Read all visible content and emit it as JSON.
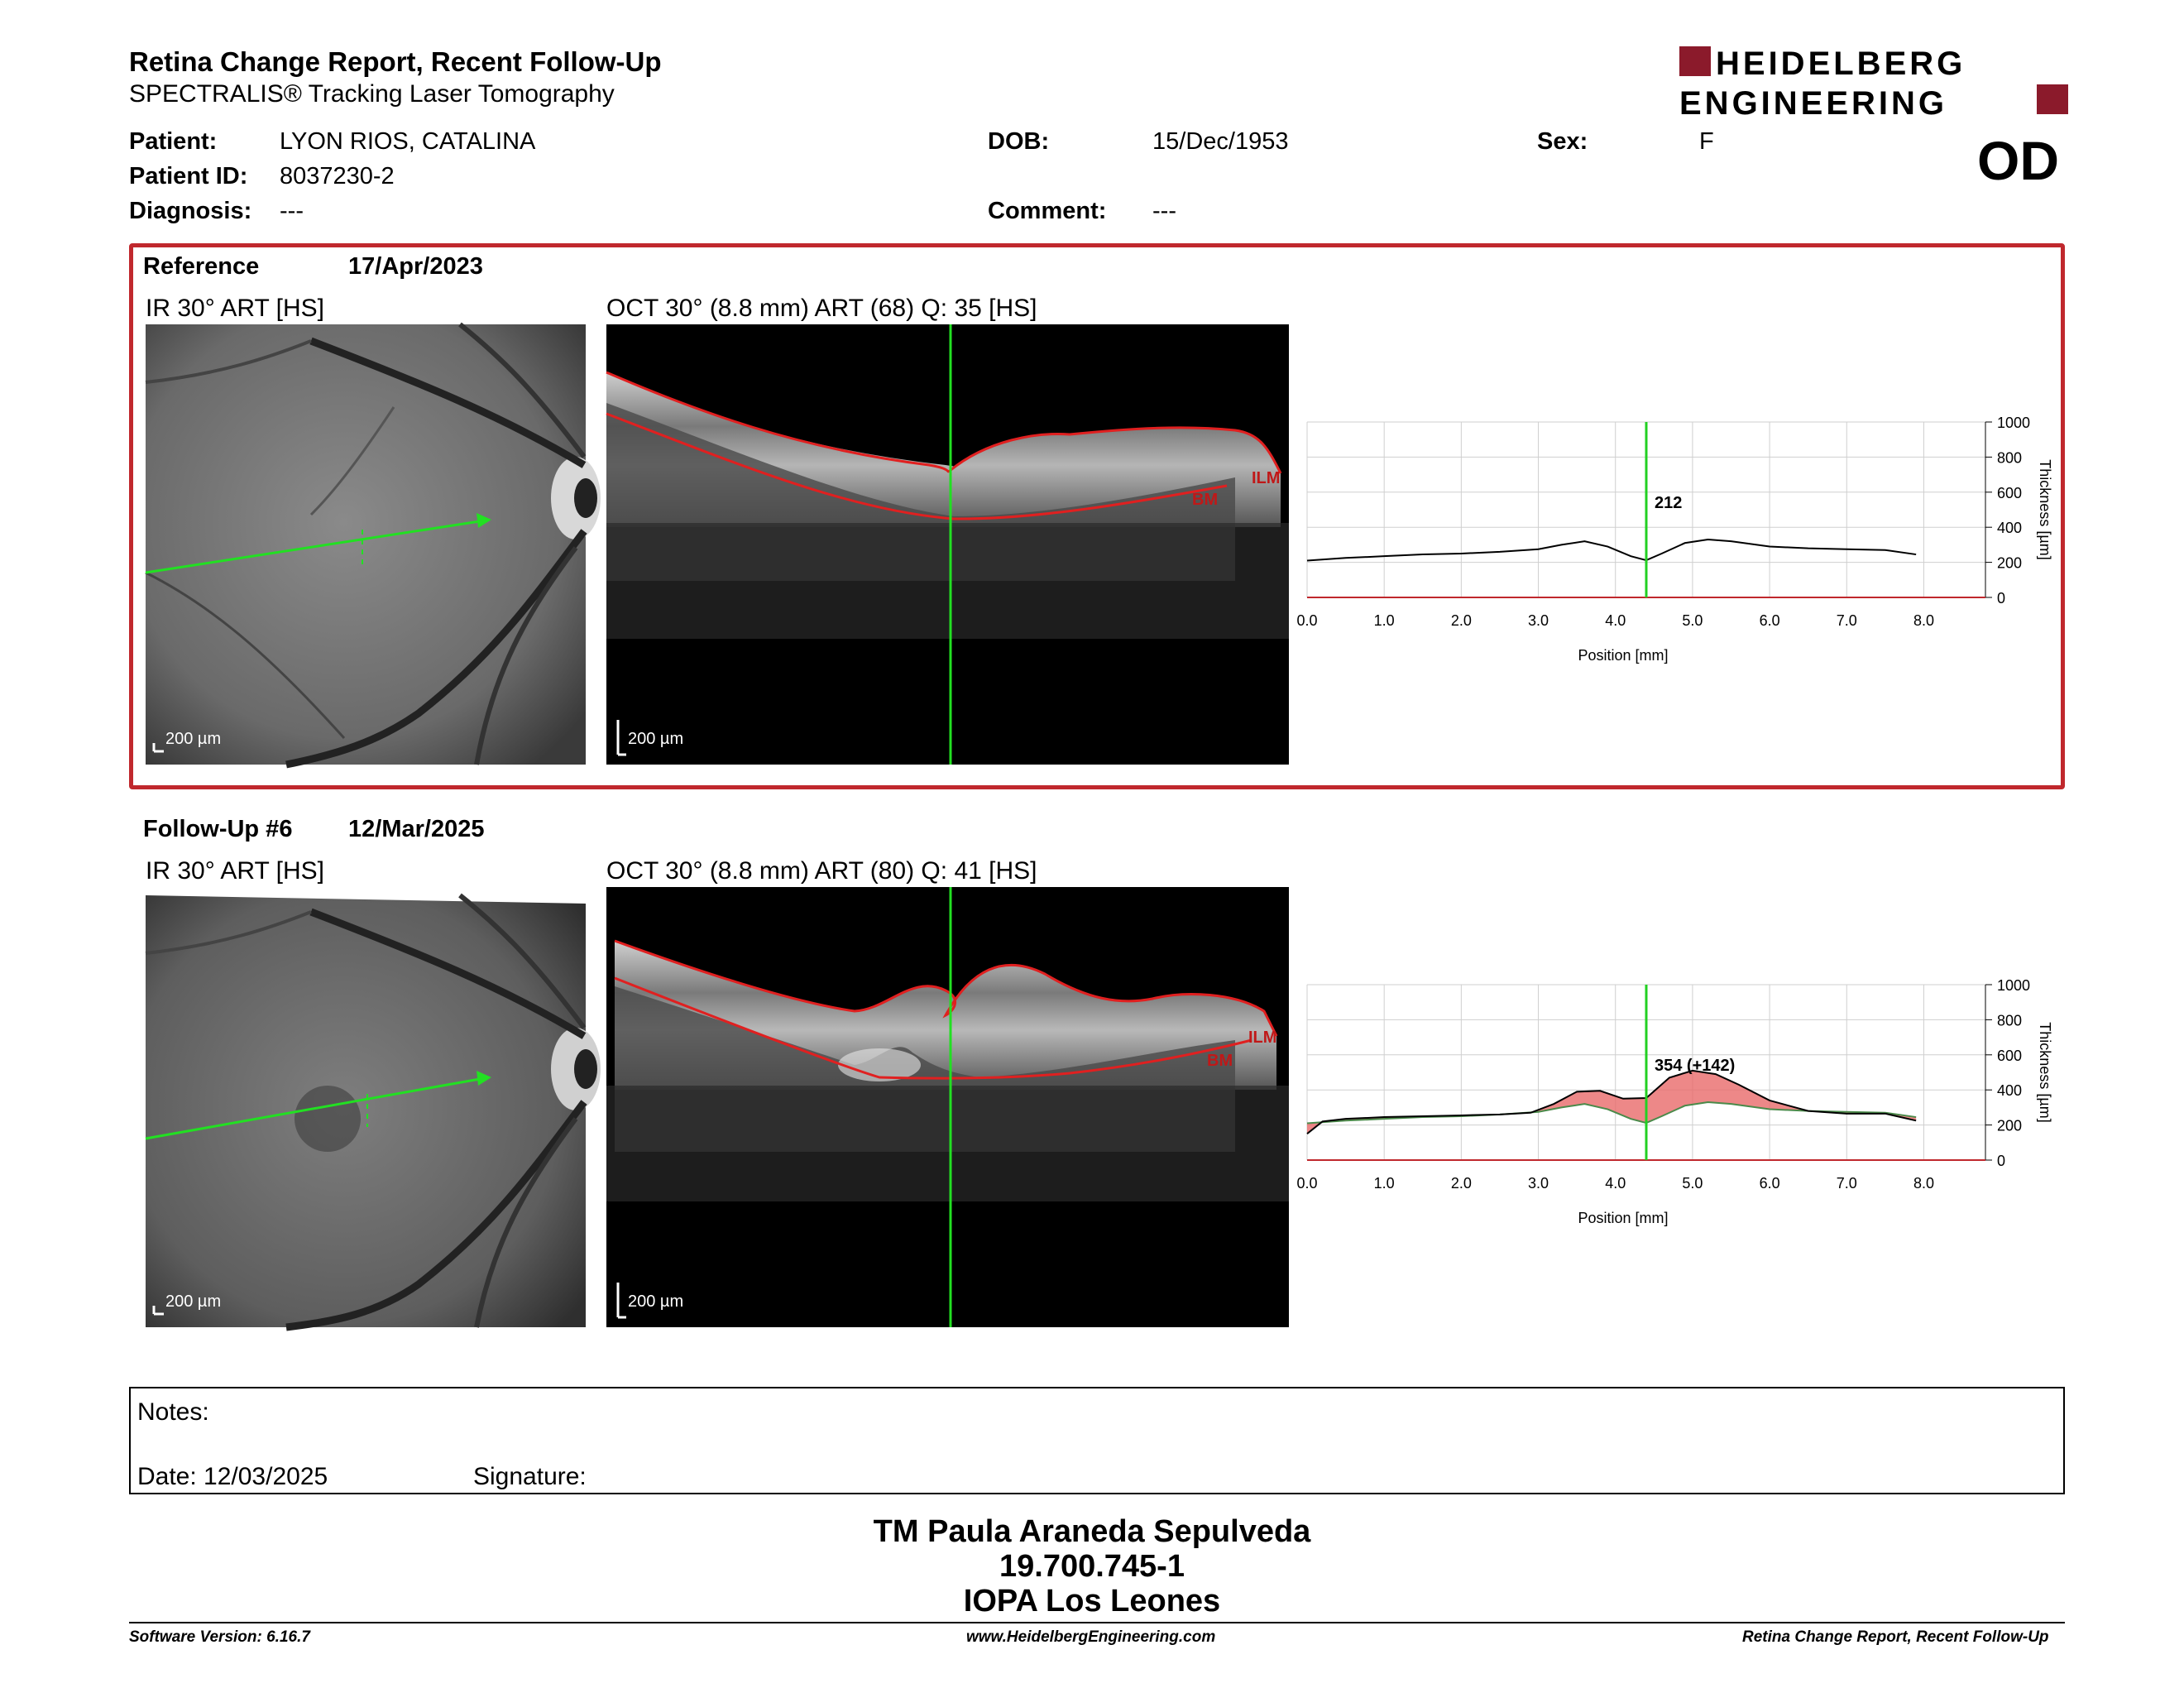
{
  "header": {
    "title": "Retina Change Report, Recent Follow-Up",
    "subtitle": "SPECTRALIS® Tracking Laser Tomography",
    "logo_line1": "HEIDELBERG",
    "logo_line2": "ENGINEERING",
    "brand_color": "#8b1a2b"
  },
  "patient": {
    "name_label": "Patient:",
    "name": "LYON RIOS, CATALINA",
    "id_label": "Patient ID:",
    "id": "8037230-2",
    "diagnosis_label": "Diagnosis:",
    "diagnosis": "---",
    "dob_label": "DOB:",
    "dob": "15/Dec/1953",
    "comment_label": "Comment:",
    "comment": "---",
    "sex_label": "Sex:",
    "sex": "F",
    "eye": "OD"
  },
  "reference": {
    "label": "Reference",
    "date": "17/Apr/2023",
    "ir_label": "IR 30° ART [HS]",
    "oct_label": "OCT 30° (8.8 mm) ART (68) Q: 35 [HS]",
    "scale": "200 µm",
    "ilm": "ILM",
    "bm": "BM"
  },
  "followup": {
    "label": "Follow-Up #6",
    "date": "12/Mar/2025",
    "ir_label": "IR 30° ART [HS]",
    "oct_label": "OCT 30° (8.8 mm) ART (80) Q: 41 [HS]",
    "scale": "200 µm",
    "ilm": "ILM",
    "bm": "BM"
  },
  "chart_data": [
    {
      "type": "line",
      "xlabel": "Position [mm]",
      "ylabel": "Thickness [µm]",
      "xlim": [
        0,
        8.8
      ],
      "ylim": [
        0,
        1000
      ],
      "x_ticks": [
        "0.0",
        "1.0",
        "2.0",
        "3.0",
        "4.0",
        "5.0",
        "6.0",
        "7.0",
        "8.0"
      ],
      "y_ticks": [
        "0",
        "200",
        "400",
        "600",
        "800",
        "1000"
      ],
      "cursor_x": 4.4,
      "cursor_label": "212",
      "series": [
        {
          "x": [
            0,
            0.5,
            1,
            1.5,
            2,
            2.5,
            3,
            3.3,
            3.6,
            3.9,
            4.2,
            4.4,
            4.6,
            4.9,
            5.2,
            5.5,
            6,
            6.5,
            7,
            7.5,
            7.9
          ],
          "y": [
            210,
            225,
            235,
            245,
            250,
            260,
            275,
            300,
            320,
            290,
            235,
            212,
            250,
            310,
            330,
            320,
            290,
            280,
            275,
            270,
            245
          ]
        }
      ]
    },
    {
      "type": "area",
      "xlabel": "Position [mm]",
      "ylabel": "Thickness [µm]",
      "xlim": [
        0,
        8.8
      ],
      "ylim": [
        0,
        1000
      ],
      "x_ticks": [
        "0.0",
        "1.0",
        "2.0",
        "3.0",
        "4.0",
        "5.0",
        "6.0",
        "7.0",
        "8.0"
      ],
      "y_ticks": [
        "0",
        "200",
        "400",
        "600",
        "800",
        "1000"
      ],
      "cursor_x": 4.4,
      "cursor_label": "354 (+142)",
      "series": [
        {
          "x": [
            0,
            0.2,
            0.5,
            1,
            1.5,
            2,
            2.5,
            2.9,
            3.2,
            3.5,
            3.8,
            4.1,
            4.4,
            4.7,
            5.0,
            5.3,
            5.6,
            6.0,
            6.5,
            7,
            7.5,
            7.9
          ],
          "y": [
            150,
            220,
            235,
            245,
            250,
            255,
            260,
            270,
            320,
            390,
            395,
            350,
            354,
            470,
            510,
            490,
            430,
            340,
            280,
            265,
            265,
            225
          ]
        },
        {
          "x": [
            0,
            0.5,
            1,
            1.5,
            2,
            2.5,
            3,
            3.3,
            3.6,
            3.9,
            4.2,
            4.4,
            4.6,
            4.9,
            5.2,
            5.5,
            6,
            6.5,
            7,
            7.5,
            7.9
          ],
          "y": [
            210,
            225,
            235,
            245,
            250,
            260,
            275,
            300,
            320,
            290,
            235,
            212,
            250,
            310,
            330,
            320,
            290,
            280,
            275,
            270,
            245
          ]
        }
      ]
    }
  ],
  "notes": {
    "notes_label": "Notes:",
    "date_label": "Date: 12/03/2025",
    "signature_label": "Signature:"
  },
  "operator": {
    "name": "TM Paula Araneda Sepulveda",
    "id": "19.700.745-1",
    "site": "IOPA Los Leones"
  },
  "footer": {
    "software": "Software Version: 6.16.7",
    "website": "www.HeidelbergEngineering.com",
    "report": "Retina Change Report, Recent Follow-Up"
  }
}
